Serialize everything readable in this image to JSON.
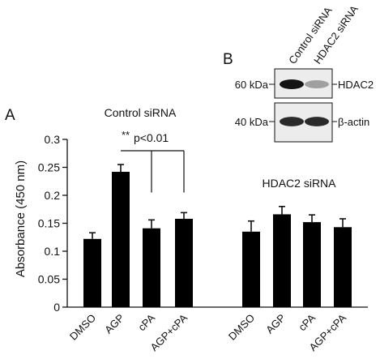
{
  "panel_labels": {
    "a": "A",
    "b": "B"
  },
  "chart_data": {
    "type": "bar",
    "ylabel": "Absorbance (450 nm)",
    "ylim": [
      0,
      0.3
    ],
    "yticks": [
      0,
      0.05,
      0.1,
      0.15,
      0.2,
      0.25,
      0.3
    ],
    "ytick_labels": [
      "0",
      "0.05",
      "0.1",
      "0.15",
      "0.2",
      "0.25",
      "0.3"
    ],
    "groups": [
      {
        "title": "Control siRNA",
        "categories": [
          "DMSO",
          "AGP",
          "cPA",
          "AGP+cPA"
        ],
        "values": [
          0.122,
          0.242,
          0.141,
          0.158
        ],
        "errors": [
          0.011,
          0.013,
          0.015,
          0.011
        ]
      },
      {
        "title": "HDAC2 siRNA",
        "categories": [
          "DMSO",
          "AGP",
          "cPA",
          "AGP+cPA"
        ],
        "values": [
          0.135,
          0.166,
          0.152,
          0.143
        ],
        "errors": [
          0.019,
          0.014,
          0.013,
          0.015
        ]
      }
    ],
    "significance": {
      "stars": "**",
      "text": "p<0.01"
    },
    "bar_color": "#000000"
  },
  "blot": {
    "lanes": [
      "Control siRNA",
      "HDAC2 siRNA"
    ],
    "rows": [
      {
        "size": "60 kDa",
        "protein": "HDAC2",
        "intensity": [
          1.0,
          0.35
        ]
      },
      {
        "size": "40 kDa",
        "protein": "β-actin",
        "intensity": [
          0.9,
          0.9
        ]
      }
    ]
  }
}
